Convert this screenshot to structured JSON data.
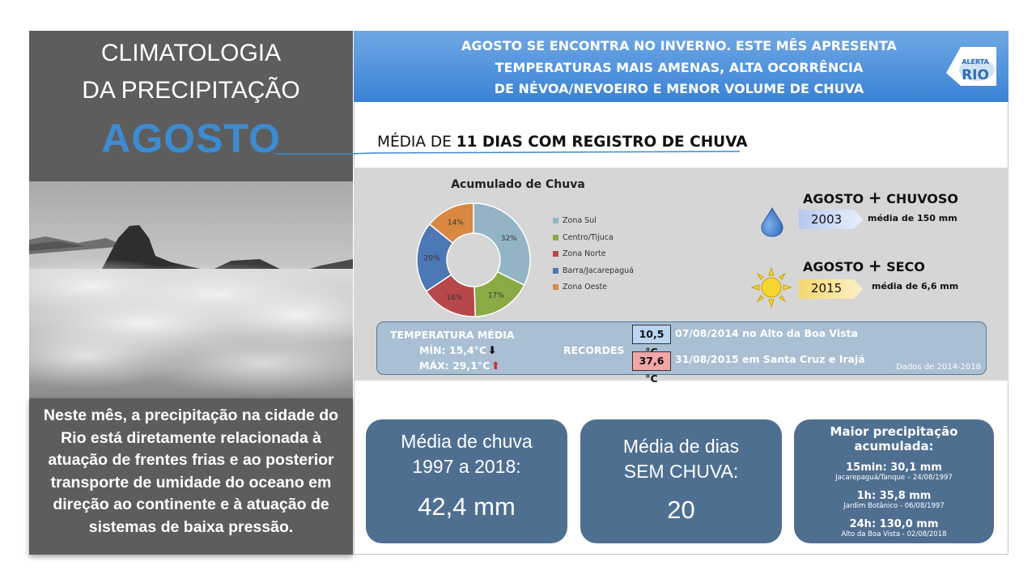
{
  "left": {
    "title_line1": "CLIMATOLOGIA",
    "title_line2": "DA PRECIPITAÇÃO",
    "month": "AGOSTO",
    "description": "Neste mês, a precipitação na cidade do Rio está diretamente relacionada à atuação de frentes frias e ao posterior transporte de umidade do oceano em direção ao continente e à atuação de sistemas de baixa pressão."
  },
  "banner": {
    "line1": "AGOSTO SE ENCONTRA NO INVERNO. ESTE MÊS APRESENTA",
    "line2": "TEMPERATURAS MAIS AMENAS, ALTA OCORRÊNCIA",
    "line3": "DE NÉVOA/NEVOEIRO E MENOR VOLUME DE CHUVA",
    "logo_small": "ALERTA",
    "logo_big": "RIO",
    "accent": "#3a82d6"
  },
  "rain_days": {
    "prefix": "MÉDIA DE",
    "bold": "11 DIAS COM REGISTRO DE CHUVA"
  },
  "chart_data": {
    "type": "pie",
    "title": "Acumulado de Chuva",
    "categories": [
      "Zona Sul",
      "Centro/Tijuca",
      "Zona Norte",
      "Barra/Jacarepaguá",
      "Zona Oeste"
    ],
    "values": [
      32,
      17,
      16,
      20,
      14
    ],
    "labels": [
      "32%",
      "17%",
      "16%",
      "20%",
      "14%"
    ],
    "colors": [
      "#93b4c4",
      "#8aaa45",
      "#b8474a",
      "#4d78b6",
      "#d88840"
    ],
    "donut": true,
    "legend_position": "right"
  },
  "extremes": {
    "wet": {
      "title": "AGOSTO",
      "plus": "+",
      "word": "CHUVOSO",
      "year": "2003",
      "note": "média de 150 mm",
      "icon": "water-drop-icon"
    },
    "dry": {
      "title": "AGOSTO",
      "plus": "+",
      "word": "SECO",
      "year": "2015",
      "note": "média de 6,6 mm",
      "icon": "sun-icon"
    }
  },
  "temperature": {
    "title": "TEMPERATURA MÉDIA",
    "min": "MÍN: 15,4°C",
    "max": "MÁX: 29,1°C",
    "records_label": "RECORDES",
    "record_min_value": "10,5 °C",
    "record_min_text": "07/08/2014  no Alto da Boa Vista",
    "record_max_value": "37,6 °C",
    "record_max_text": "31/08/2015  em Santa Cruz e Irajá",
    "source": "Dados de 2014-2018"
  },
  "cards": {
    "avg_rain": {
      "line1": "Média de chuva",
      "line2": "1997 a 2018:",
      "value": "42,4 mm"
    },
    "dry_days": {
      "line1": "Média  de dias",
      "line2": "SEM CHUVA:",
      "value": "20"
    },
    "max_precip": {
      "title": "Maior precipitação acumulada:",
      "items": [
        {
          "main": "15min: 30,1 mm",
          "sub": "Jacarepaguá/Tanque – 24/08/1997"
        },
        {
          "main": "1h: 35,8 mm",
          "sub": "Jardim Botânico - 06/08/1997"
        },
        {
          "main": "24h: 130,0 mm",
          "sub": "Alto da Boa Vista - 02/08/2018"
        }
      ]
    }
  }
}
